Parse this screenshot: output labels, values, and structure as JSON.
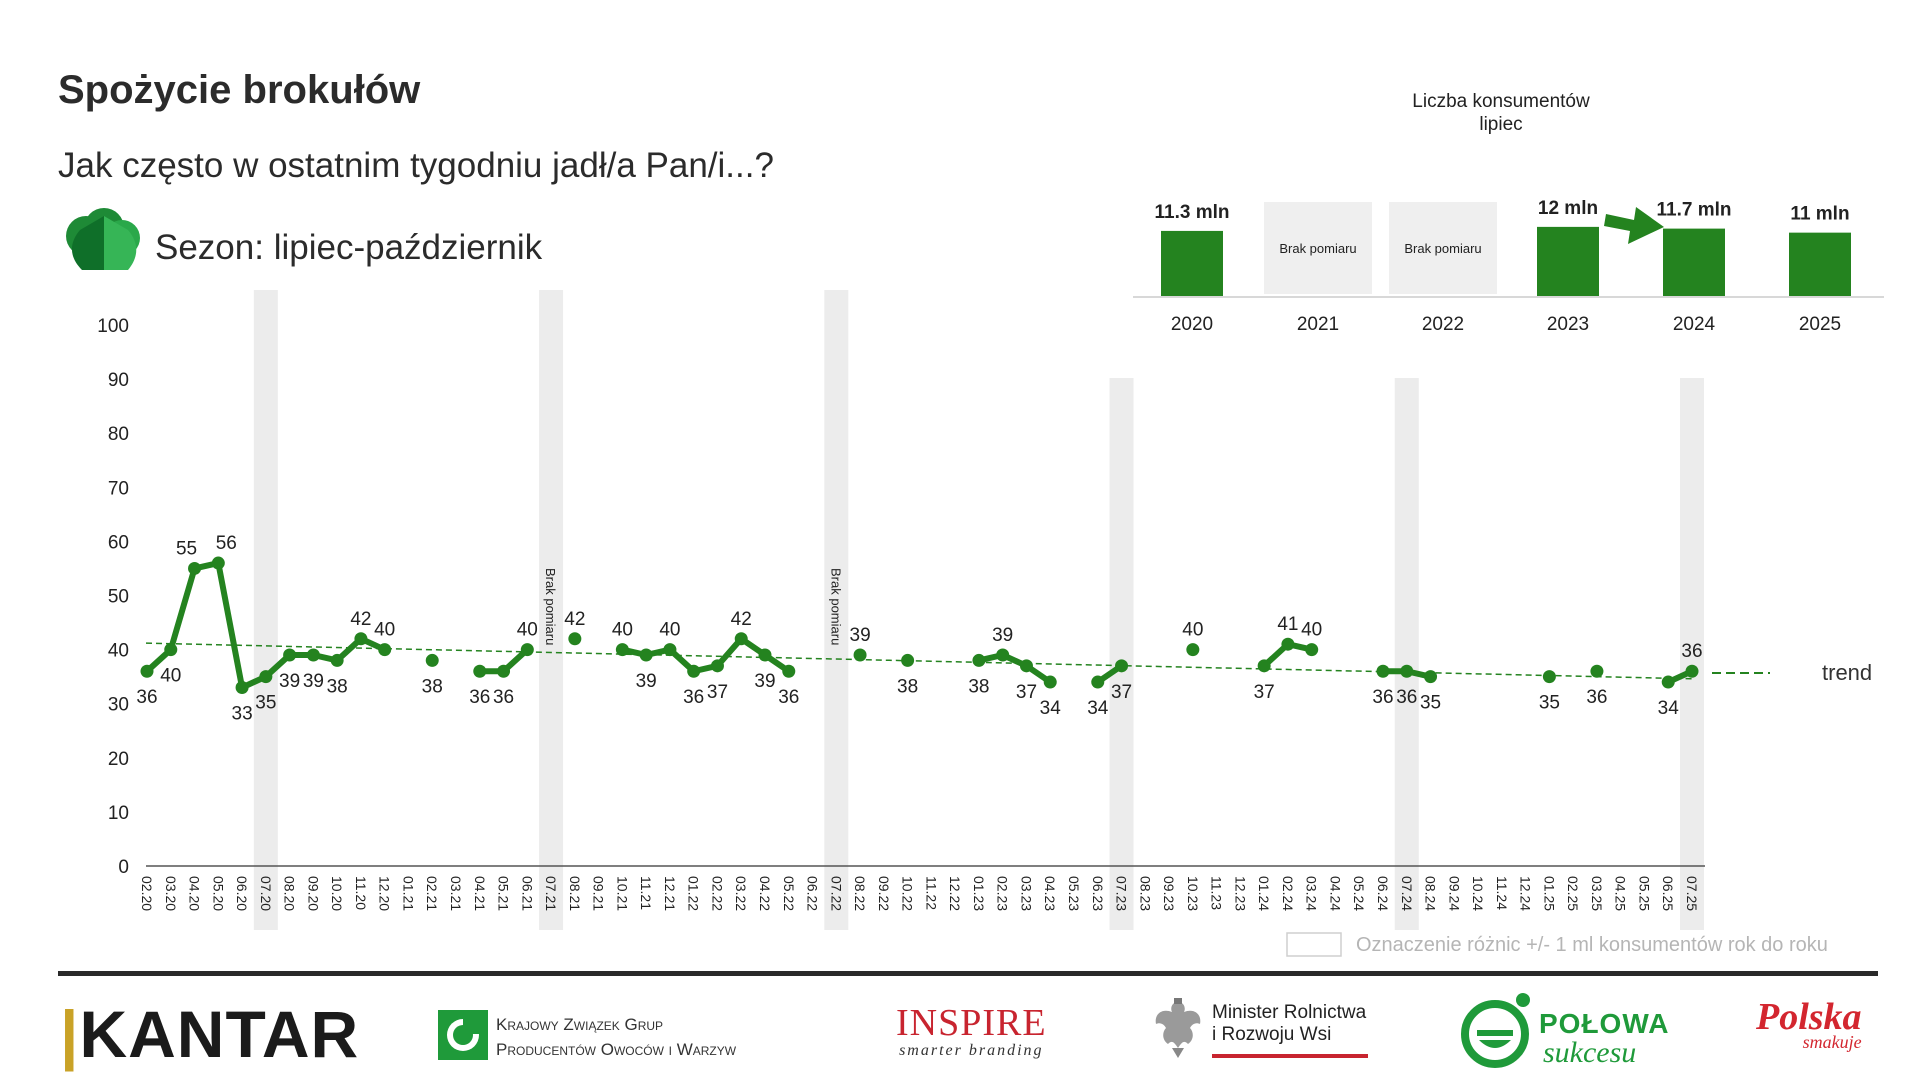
{
  "page": {
    "title": "Spożycie brokułów",
    "subtitle": "Jak często w ostatnim tygodniu jadł/a Pan/i...?",
    "season_label": "Sezon: lipiec-październik"
  },
  "colors": {
    "series": "#24831f",
    "highlight_band": "#ececec",
    "axis": "#555555",
    "trend": "#24831f"
  },
  "chart_data": [
    {
      "type": "line",
      "title": "",
      "xlabel": "",
      "ylabel": "",
      "ylim": [
        0,
        100
      ],
      "y_ticks": [
        0,
        10,
        20,
        30,
        40,
        50,
        60,
        70,
        80,
        90,
        100
      ],
      "grid": false,
      "x": [
        "02.20",
        "03.20",
        "04.20",
        "05.20",
        "06.20",
        "07.20",
        "08.20",
        "09.20",
        "10.20",
        "11.20",
        "12.20",
        "01.21",
        "02.21",
        "03.21",
        "04.21",
        "05.21",
        "06.21",
        "07.21",
        "08.21",
        "09.21",
        "10.21",
        "11.21",
        "12.21",
        "01.22",
        "02.22",
        "03.22",
        "04.22",
        "05.22",
        "06.22",
        "07.22",
        "08.22",
        "09.22",
        "10.22",
        "11.22",
        "12.22",
        "01.23",
        "02.23",
        "03.23",
        "04.23",
        "05.23",
        "06.23",
        "07.23",
        "08.23",
        "09.23",
        "10.23",
        "11.23",
        "12.23",
        "01.24",
        "02.24",
        "03.24",
        "04.24",
        "05.24",
        "06.24",
        "07.24",
        "08.24",
        "09.24",
        "10.24",
        "11.24",
        "12.24",
        "01.25",
        "02.25",
        "03.25",
        "04.25",
        "05.25",
        "06.25",
        "07.25"
      ],
      "series": [
        {
          "values": [
            36,
            40,
            55,
            56,
            33,
            35,
            39,
            39,
            38,
            42,
            40,
            null,
            38,
            null,
            36,
            36,
            40,
            null,
            42,
            null,
            40,
            39,
            40,
            36,
            37,
            42,
            39,
            36,
            null,
            null,
            39,
            null,
            38,
            null,
            null,
            38,
            39,
            37,
            34,
            null,
            34,
            37,
            null,
            null,
            40,
            null,
            null,
            37,
            41,
            40,
            null,
            null,
            36,
            36,
            35,
            null,
            null,
            null,
            null,
            35,
            null,
            36,
            null,
            null,
            34,
            36
          ]
        }
      ],
      "trend": {
        "label": "trend",
        "start": 41.2,
        "end": 34.6
      },
      "annotations": [
        {
          "text": "Brak pomiaru",
          "at": "07.21"
        },
        {
          "text": "Brak pomiaru",
          "at": "07.22"
        }
      ],
      "highlighted_months": [
        "07.20",
        "07.21",
        "07.22",
        "07.23",
        "07.24",
        "07.25"
      ],
      "legend": {
        "text": "Oznaczenie różnic +/- 1 ml konsumentów rok do roku",
        "placement": "bottom-right"
      }
    },
    {
      "type": "bar",
      "title": "Liczba konsumentów",
      "subtitle": "lipiec",
      "categories": [
        "2020",
        "2021",
        "2022",
        "2023",
        "2024",
        "2025"
      ],
      "values": [
        11.3,
        null,
        null,
        12,
        11.7,
        11
      ],
      "value_labels": [
        "11.3 mln",
        "Brak pomiaru",
        "Brak pomiaru",
        "12 mln",
        "11.7 mln",
        "11 mln"
      ],
      "ylim": [
        0,
        12.5
      ],
      "change_arrow": {
        "from": "2023",
        "to": "2024"
      }
    }
  ],
  "logos": {
    "kantar": "KANTAR",
    "kzgp_line1": "Krajowy Związek Grup",
    "kzgp_line2": "Producentów Owoców i Warzyw",
    "inspire": "INSPIRE",
    "inspire_tagline": "smarter branding",
    "minister_line1": "Minister Rolnictwa",
    "minister_line2": "i Rozwoju Wsi",
    "polowa_line1": "POŁOWA",
    "polowa_line2": "sukcesu",
    "polska_line1": "Polska",
    "polska_line2": "smakuje"
  }
}
